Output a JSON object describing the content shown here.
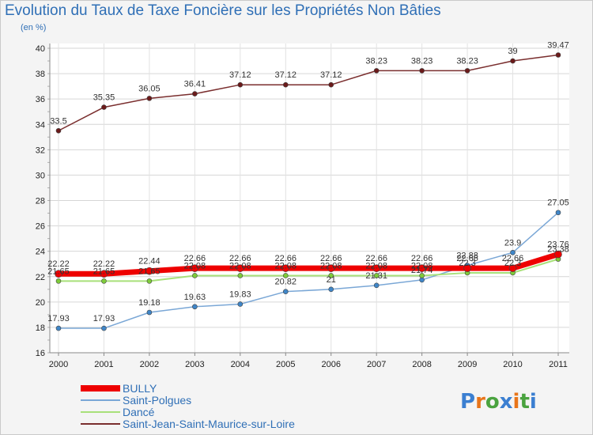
{
  "header": {
    "title": "Evolution du Taux de Taxe Foncière sur les Propriétés Non Bâties",
    "unit": "(en %)"
  },
  "logo": {
    "text": "Proxiti",
    "letter_colors": [
      "#3b7fd1",
      "#e8751a",
      "#4aa33f",
      "#3b7fd1",
      "#e8751a",
      "#4aa33f",
      "#3b7fd1"
    ]
  },
  "chart_data": {
    "type": "line",
    "title": "Evolution du Taux de Taxe Foncière sur les Propriétés Non Bâties",
    "ylabel": "(en %)",
    "xlabel": "",
    "categories": [
      "2000",
      "2001",
      "2002",
      "2003",
      "2004",
      "2005",
      "2006",
      "2007",
      "2008",
      "2009",
      "2010",
      "2011"
    ],
    "ylim": [
      16,
      40
    ],
    "yticks": [
      16,
      18,
      20,
      22,
      24,
      26,
      28,
      30,
      32,
      34,
      36,
      38,
      40
    ],
    "grid": true,
    "legend_position": "bottom-left",
    "series": [
      {
        "name": "Saint-Jean-Saint-Maurice-sur-Loire",
        "color": "#7a2e2e",
        "marker_color": "#6b1a1a",
        "values": [
          33.5,
          35.35,
          36.05,
          36.41,
          37.12,
          37.12,
          37.12,
          38.23,
          38.23,
          38.23,
          39,
          39.47
        ],
        "labels": [
          "33.5",
          "35.35",
          "36.05",
          "36.41",
          "37.12",
          "37.12",
          "37.12",
          "38.23",
          "38.23",
          "38.23",
          "39",
          "39.47"
        ]
      },
      {
        "name": "Saint-Polgues",
        "color": "#7aa7d6",
        "marker_color": "#3f86c8",
        "values": [
          17.93,
          17.93,
          19.18,
          19.63,
          19.83,
          20.82,
          21,
          21.31,
          21.74,
          22.88,
          23.9,
          27.05
        ],
        "labels": [
          "17.93",
          "17.93",
          "19.18",
          "19.63",
          "19.83",
          "20.82",
          "21",
          "21.31",
          "21.74",
          "22.88",
          "23.9",
          "27.05"
        ]
      },
      {
        "name": "Dancé",
        "color": "#a8e07a",
        "marker_color": "#7ecb3a",
        "values": [
          21.65,
          21.65,
          21.65,
          22.08,
          22.08,
          22.08,
          22.08,
          22.08,
          22.08,
          22.3,
          22.3,
          23.38
        ],
        "labels": [
          "21.65",
          "21.65",
          "21.65",
          "22.08",
          "22.08",
          "22.08",
          "22.08",
          "22.08",
          "22.08",
          "22.3",
          "22.3",
          "23.38"
        ]
      },
      {
        "name": "BULLY",
        "color": "#ee0000",
        "marker_color": "#ee0000",
        "values": [
          22.22,
          22.22,
          22.44,
          22.66,
          22.66,
          22.66,
          22.66,
          22.66,
          22.66,
          22.66,
          22.66,
          23.76
        ],
        "labels": [
          "22.22",
          "22.22",
          "22.44",
          "22.66",
          "22.66",
          "22.66",
          "22.66",
          "22.66",
          "22.66",
          "22.66",
          "22.66",
          "23.76"
        ]
      }
    ],
    "legend_order": [
      "BULLY",
      "Saint-Polgues",
      "Dancé",
      "Saint-Jean-Saint-Maurice-sur-Loire"
    ]
  }
}
